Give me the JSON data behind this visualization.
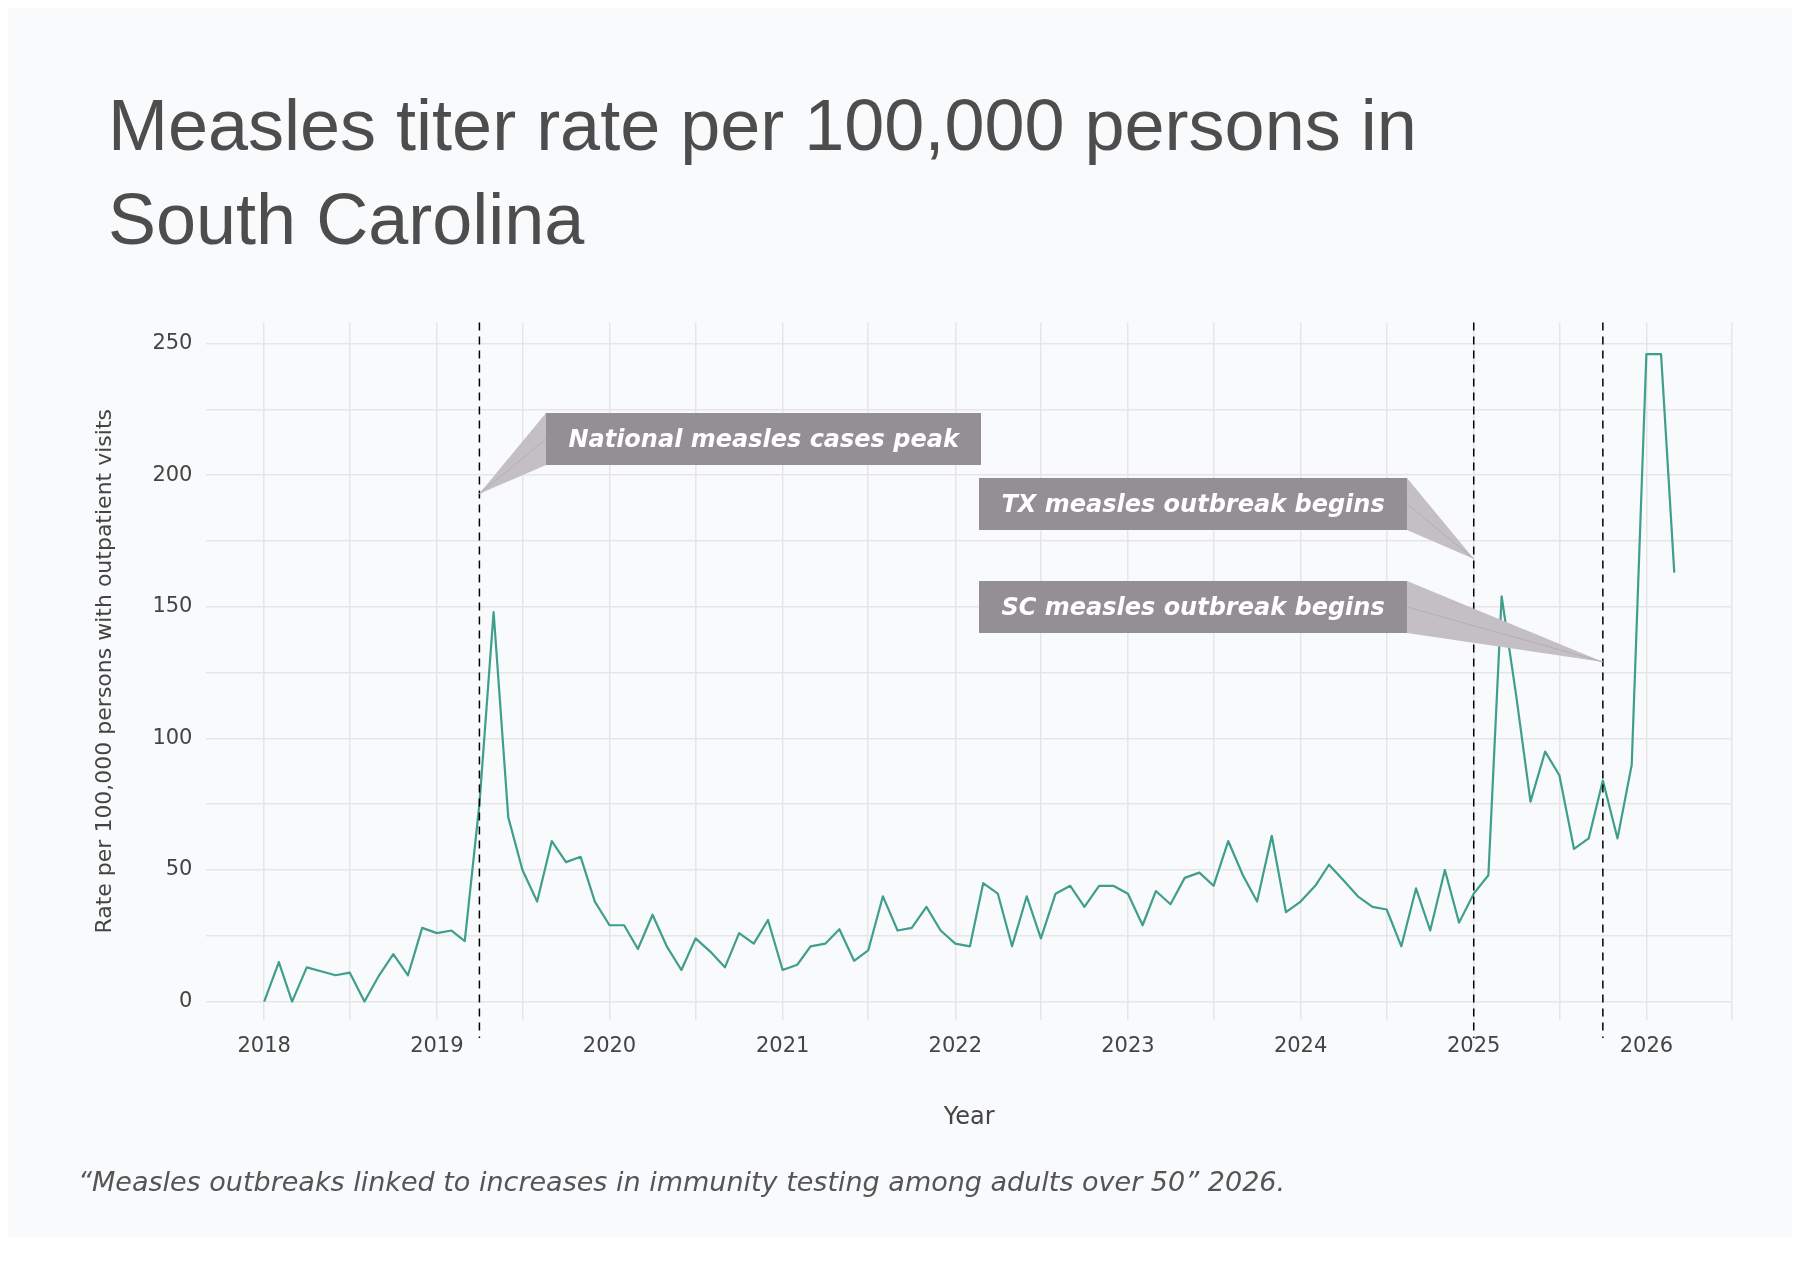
{
  "chart_data": {
    "type": "line",
    "title": "Measles titer rate per 100,000 persons in South Carolina",
    "xlabel": "Year",
    "ylabel": "Rate per 100,000 persons with outpatient visits",
    "x": [
      "2018-01",
      "2018-02",
      "2018-03",
      "2018-04",
      "2018-05",
      "2018-06",
      "2018-07",
      "2018-08",
      "2018-09",
      "2018-10",
      "2018-11",
      "2018-12",
      "2019-01",
      "2019-02",
      "2019-03",
      "2019-04",
      "2019-05",
      "2019-06",
      "2019-07",
      "2019-08",
      "2019-09",
      "2019-10",
      "2019-11",
      "2019-12",
      "2020-01",
      "2020-02",
      "2020-03",
      "2020-04",
      "2020-05",
      "2020-06",
      "2020-07",
      "2020-08",
      "2020-09",
      "2020-10",
      "2020-11",
      "2020-12",
      "2021-01",
      "2021-02",
      "2021-03",
      "2021-04",
      "2021-05",
      "2021-06",
      "2021-07",
      "2021-08",
      "2021-09",
      "2021-10",
      "2021-11",
      "2021-12",
      "2022-01",
      "2022-02",
      "2022-03",
      "2022-04",
      "2022-05",
      "2022-06",
      "2022-07",
      "2022-08",
      "2022-09",
      "2022-10",
      "2022-11",
      "2022-12",
      "2023-01",
      "2023-02",
      "2023-03",
      "2023-04",
      "2023-05",
      "2023-06",
      "2023-07",
      "2023-08",
      "2023-09",
      "2023-10",
      "2023-11",
      "2023-12",
      "2024-01",
      "2024-02",
      "2024-03",
      "2024-04",
      "2024-05",
      "2024-06",
      "2024-07",
      "2024-08",
      "2024-09",
      "2024-10",
      "2024-11",
      "2024-12",
      "2025-01",
      "2025-02",
      "2025-03",
      "2025-04",
      "2025-05",
      "2025-06",
      "2025-07",
      "2025-08",
      "2025-09",
      "2025-10",
      "2025-11",
      "2025-12",
      "2026-01",
      "2026-02",
      "2026-03"
    ],
    "series": [
      {
        "color": "#3f9e8c",
        "values": [
          0,
          15,
          0,
          13,
          11.5,
          10,
          11,
          0,
          10,
          18,
          10,
          28,
          26,
          27,
          23,
          75,
          148,
          70,
          50,
          38,
          61,
          53,
          55,
          38,
          29,
          29,
          20,
          33,
          21,
          12,
          24,
          19,
          13,
          26,
          22,
          31,
          12,
          14,
          21,
          22,
          27.5,
          15.5,
          19.5,
          40,
          27,
          28,
          36,
          27,
          22,
          21,
          45,
          41,
          21,
          40,
          24,
          41,
          44,
          36,
          44,
          44,
          41,
          29,
          42,
          37,
          47,
          49,
          44,
          61,
          48,
          38,
          63,
          34,
          38,
          44,
          52,
          46,
          40,
          36,
          35,
          21,
          43,
          27,
          50,
          30,
          41,
          48,
          154,
          116,
          76,
          95,
          86,
          58,
          62,
          84,
          62,
          90,
          246,
          246,
          163
        ]
      }
    ],
    "xlim": [
      "2017-09",
      "2026-07"
    ],
    "xticks": [
      {
        "value": "2018",
        "label": "2018"
      },
      {
        "value": "2018-07",
        "label": null
      },
      {
        "value": "2019",
        "label": "2019"
      },
      {
        "value": "2019-07",
        "label": null
      },
      {
        "value": "2020",
        "label": "2020"
      },
      {
        "value": "2020-07",
        "label": null
      },
      {
        "value": "2021",
        "label": "2021"
      },
      {
        "value": "2021-07",
        "label": null
      },
      {
        "value": "2022",
        "label": "2022"
      },
      {
        "value": "2022-07",
        "label": null
      },
      {
        "value": "2023",
        "label": "2023"
      },
      {
        "value": "2023-07",
        "label": null
      },
      {
        "value": "2024",
        "label": "2024"
      },
      {
        "value": "2024-07",
        "label": null
      },
      {
        "value": "2025",
        "label": "2025"
      },
      {
        "value": "2025-07",
        "label": null
      },
      {
        "value": "2026",
        "label": "2026"
      },
      {
        "value": "2026-07",
        "label": null
      }
    ],
    "ylim": [
      -7,
      258
    ],
    "yticks": [
      0,
      {
        "value": 25,
        "label": null
      },
      50,
      {
        "value": 75,
        "label": null
      },
      100,
      {
        "value": 125,
        "label": null
      },
      150,
      {
        "value": 175,
        "label": null
      },
      200,
      {
        "value": 225,
        "label": null
      },
      250
    ],
    "grid": true,
    "marker": "none",
    "line_style": "solid",
    "legend": false,
    "ref_lines": [
      {
        "axis": "x",
        "value": "2019-04",
        "color": "#000000",
        "line_style": "dashed"
      },
      {
        "axis": "x",
        "value": "2025-01",
        "color": "#000000",
        "line_style": "dashed"
      },
      {
        "axis": "x",
        "value": "2025-10",
        "color": "#000000",
        "line_style": "dashed"
      }
    ],
    "annotations": [
      {
        "text": "National measles cases peak",
        "x": "2019-04",
        "y": 193
      },
      {
        "text": "TX measles outbreak begins",
        "x": "2025-01",
        "y": 168
      },
      {
        "text": "SC measles outbreak begins",
        "x": "2025-10",
        "y": 129
      },
      "“Measles outbreaks linked to increases in immunity testing among adults over 50” 2026."
    ]
  }
}
